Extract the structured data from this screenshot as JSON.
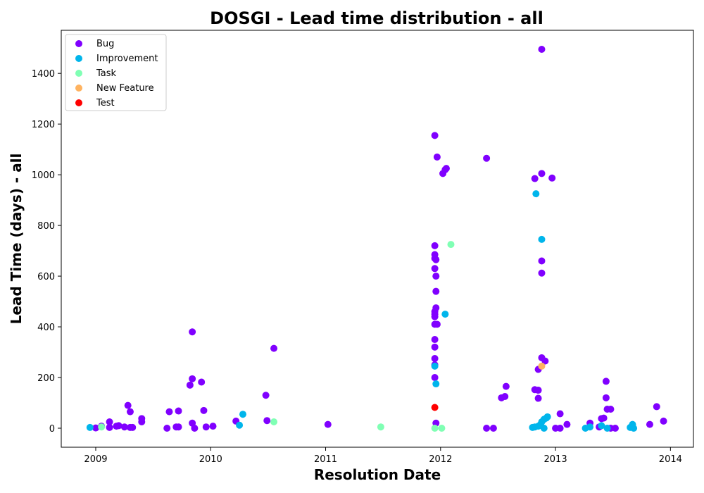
{
  "chart_data": {
    "type": "scatter",
    "title": "DOSGI - Lead time distribution - all",
    "xlabel": "Resolution Date",
    "ylabel": "Lead Time (days) - all",
    "xlim": [
      2008.7,
      2014.2
    ],
    "ylim": [
      -75,
      1570
    ],
    "x_ticks": [
      {
        "value": 2009,
        "label": "2009"
      },
      {
        "value": 2010,
        "label": "2010"
      },
      {
        "value": 2011,
        "label": "2011"
      },
      {
        "value": 2012,
        "label": "2012"
      },
      {
        "value": 2013,
        "label": "2013"
      },
      {
        "value": 2014,
        "label": "2014"
      }
    ],
    "y_ticks": [
      {
        "value": 0,
        "label": "0"
      },
      {
        "value": 200,
        "label": "200"
      },
      {
        "value": 400,
        "label": "400"
      },
      {
        "value": 600,
        "label": "600"
      },
      {
        "value": 800,
        "label": "800"
      },
      {
        "value": 1000,
        "label": "1000"
      },
      {
        "value": 1200,
        "label": "1200"
      },
      {
        "value": 1400,
        "label": "1400"
      }
    ],
    "grid": false,
    "legend_position": "top-left",
    "series": [
      {
        "name": "Bug",
        "color": "#8000ff",
        "points": [
          [
            2009.0,
            1
          ],
          [
            2009.05,
            8
          ],
          [
            2009.12,
            25
          ],
          [
            2009.12,
            3
          ],
          [
            2009.18,
            8
          ],
          [
            2009.2,
            10
          ],
          [
            2009.25,
            5
          ],
          [
            2009.28,
            90
          ],
          [
            2009.3,
            65
          ],
          [
            2009.3,
            3
          ],
          [
            2009.32,
            3
          ],
          [
            2009.4,
            38
          ],
          [
            2009.4,
            25
          ],
          [
            2009.62,
            0
          ],
          [
            2009.64,
            65
          ],
          [
            2009.7,
            5
          ],
          [
            2009.72,
            5
          ],
          [
            2009.72,
            68
          ],
          [
            2009.82,
            170
          ],
          [
            2009.84,
            380
          ],
          [
            2009.84,
            195
          ],
          [
            2009.84,
            20
          ],
          [
            2009.86,
            0
          ],
          [
            2009.92,
            182
          ],
          [
            2009.94,
            70
          ],
          [
            2009.96,
            5
          ],
          [
            2010.02,
            8
          ],
          [
            2010.22,
            28
          ],
          [
            2010.48,
            130
          ],
          [
            2010.49,
            30
          ],
          [
            2010.55,
            315
          ],
          [
            2011.02,
            15
          ],
          [
            2011.95,
            1155
          ],
          [
            2011.95,
            720
          ],
          [
            2011.95,
            685
          ],
          [
            2011.95,
            670
          ],
          [
            2011.95,
            630
          ],
          [
            2011.96,
            600
          ],
          [
            2011.96,
            665
          ],
          [
            2011.96,
            540
          ],
          [
            2011.96,
            475
          ],
          [
            2011.95,
            460
          ],
          [
            2011.95,
            450
          ],
          [
            2011.95,
            440
          ],
          [
            2011.95,
            410
          ],
          [
            2011.97,
            410
          ],
          [
            2011.95,
            350
          ],
          [
            2011.95,
            320
          ],
          [
            2011.95,
            275
          ],
          [
            2011.95,
            250
          ],
          [
            2011.95,
            200
          ],
          [
            2011.96,
            20
          ],
          [
            2011.97,
            1070
          ],
          [
            2012.02,
            1005
          ],
          [
            2012.04,
            1020
          ],
          [
            2012.05,
            1025
          ],
          [
            2012.4,
            1065
          ],
          [
            2012.4,
            0
          ],
          [
            2012.46,
            0
          ],
          [
            2012.53,
            120
          ],
          [
            2012.56,
            125
          ],
          [
            2012.57,
            165
          ],
          [
            2012.82,
            985
          ],
          [
            2012.82,
            152
          ],
          [
            2012.85,
            118
          ],
          [
            2012.85,
            150
          ],
          [
            2012.85,
            232
          ],
          [
            2012.88,
            1495
          ],
          [
            2012.88,
            1005
          ],
          [
            2012.88,
            660
          ],
          [
            2012.88,
            612
          ],
          [
            2012.88,
            278
          ],
          [
            2012.91,
            265
          ],
          [
            2012.97,
            987
          ],
          [
            2013.0,
            0
          ],
          [
            2013.04,
            0
          ],
          [
            2013.04,
            57
          ],
          [
            2013.1,
            15
          ],
          [
            2013.3,
            20
          ],
          [
            2013.38,
            5
          ],
          [
            2013.4,
            38
          ],
          [
            2013.42,
            40
          ],
          [
            2013.44,
            185
          ],
          [
            2013.44,
            120
          ],
          [
            2013.45,
            75
          ],
          [
            2013.48,
            75
          ],
          [
            2013.48,
            0
          ],
          [
            2013.52,
            0
          ],
          [
            2013.82,
            15
          ],
          [
            2013.88,
            85
          ],
          [
            2013.94,
            28
          ]
        ]
      },
      {
        "name": "Improvement",
        "color": "#00b5eb",
        "points": [
          [
            2008.95,
            3
          ],
          [
            2010.25,
            12
          ],
          [
            2010.28,
            55
          ],
          [
            2011.95,
            245
          ],
          [
            2011.96,
            175
          ],
          [
            2012.04,
            450
          ],
          [
            2012.83,
            925
          ],
          [
            2012.88,
            745
          ],
          [
            2012.8,
            3
          ],
          [
            2012.82,
            5
          ],
          [
            2012.85,
            8
          ],
          [
            2012.87,
            15
          ],
          [
            2012.88,
            25
          ],
          [
            2012.9,
            35
          ],
          [
            2012.92,
            40
          ],
          [
            2012.93,
            45
          ],
          [
            2012.9,
            0
          ],
          [
            2013.26,
            0
          ],
          [
            2013.3,
            5
          ],
          [
            2013.4,
            10
          ],
          [
            2013.45,
            0
          ],
          [
            2013.65,
            3
          ],
          [
            2013.67,
            15
          ],
          [
            2013.68,
            0
          ]
        ]
      },
      {
        "name": "Task",
        "color": "#80ffb4",
        "points": [
          [
            2009.05,
            5
          ],
          [
            2010.55,
            25
          ],
          [
            2011.48,
            5
          ],
          [
            2011.95,
            0
          ],
          [
            2012.01,
            0
          ],
          [
            2012.09,
            725
          ]
        ]
      },
      {
        "name": "New Feature",
        "color": "#ffb360",
        "points": [
          [
            2012.88,
            245
          ]
        ]
      },
      {
        "name": "Test",
        "color": "#ff0000",
        "points": [
          [
            2011.95,
            82
          ]
        ]
      }
    ]
  }
}
